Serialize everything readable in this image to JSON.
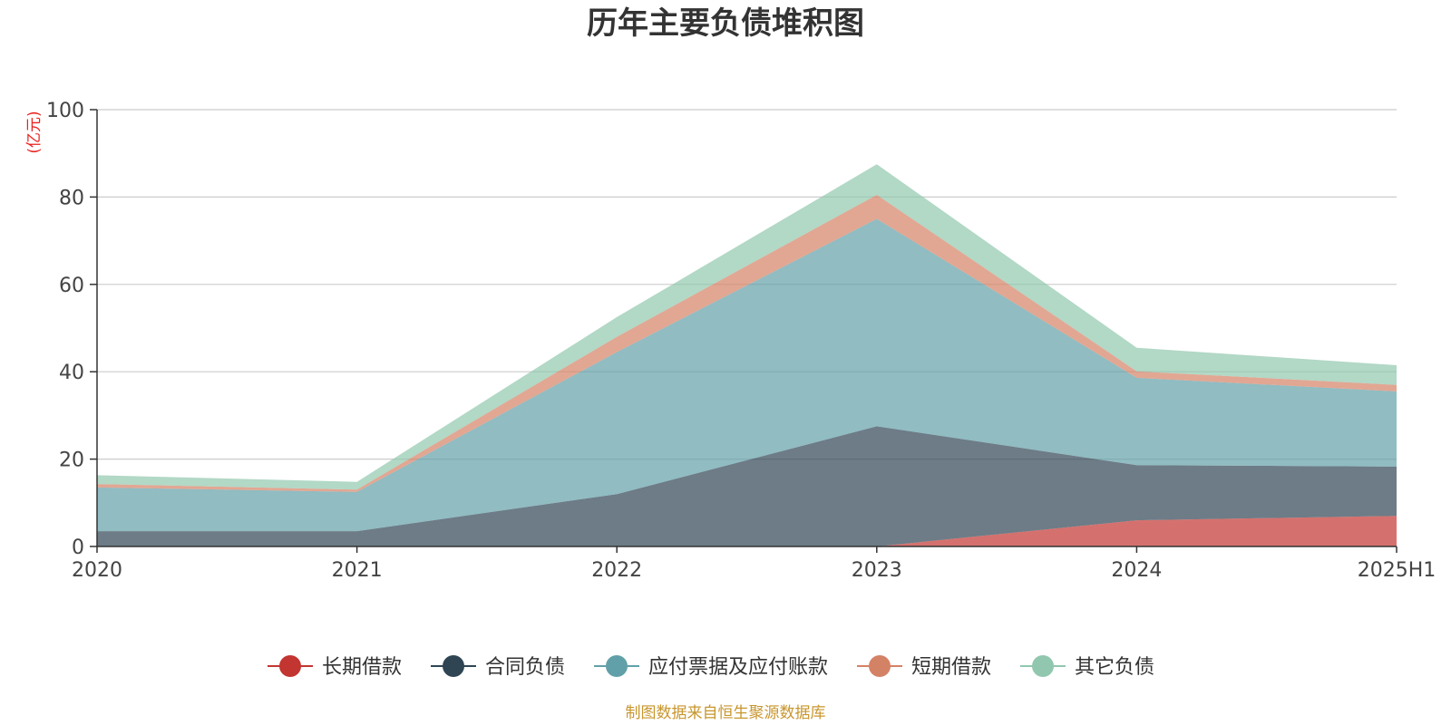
{
  "chart_data": {
    "type": "area",
    "stacked": true,
    "title": "历年主要负债堆积图",
    "ylabel": "(亿元)",
    "xlabel": "",
    "categories": [
      "2020",
      "2021",
      "2022",
      "2023",
      "2024",
      "2025H1"
    ],
    "ylim": [
      0,
      100
    ],
    "yticks": [
      0,
      20,
      40,
      60,
      80,
      100
    ],
    "grid": true,
    "legend_position": "bottom",
    "series": [
      {
        "name": "长期借款",
        "color": "#c23531",
        "values": [
          0,
          0,
          0,
          0,
          6,
          7
        ]
      },
      {
        "name": "合同负债",
        "color": "#2f4554",
        "values": [
          3.5,
          3.5,
          12,
          27.5,
          12.6,
          11.3
        ]
      },
      {
        "name": "应付票据及应付账款",
        "color": "#61a0a8",
        "values": [
          10,
          9,
          32.5,
          47.5,
          20,
          17.2
        ]
      },
      {
        "name": "短期借款",
        "color": "#d48265",
        "values": [
          0.8,
          0.5,
          3.5,
          5.5,
          1.5,
          1.5
        ]
      },
      {
        "name": "其它负债",
        "color": "#91c7ae",
        "values": [
          2,
          1.8,
          4.5,
          7,
          5.4,
          4.5
        ]
      }
    ]
  },
  "footer": {
    "source": "制图数据来自恒生聚源数据库"
  }
}
